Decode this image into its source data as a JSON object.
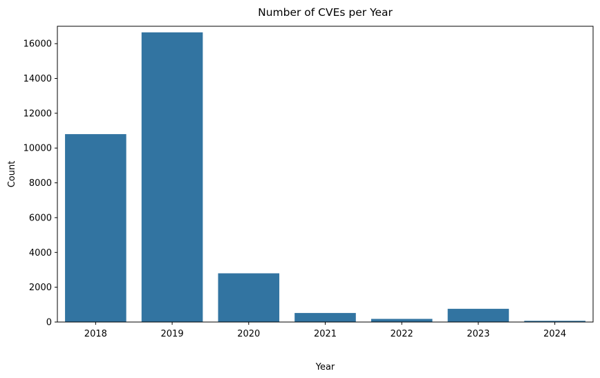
{
  "chart_data": {
    "type": "bar",
    "title": "Number of CVEs per Year",
    "xlabel": "Year",
    "ylabel": "Count",
    "categories": [
      "2018",
      "2019",
      "2020",
      "2021",
      "2022",
      "2023",
      "2024"
    ],
    "values": [
      10800,
      16650,
      2800,
      520,
      180,
      760,
      70
    ],
    "ylim": [
      0,
      17000
    ],
    "yticks": [
      0,
      2000,
      4000,
      6000,
      8000,
      10000,
      12000,
      14000,
      16000
    ],
    "grid": false,
    "bar_color": "#3274a1"
  }
}
